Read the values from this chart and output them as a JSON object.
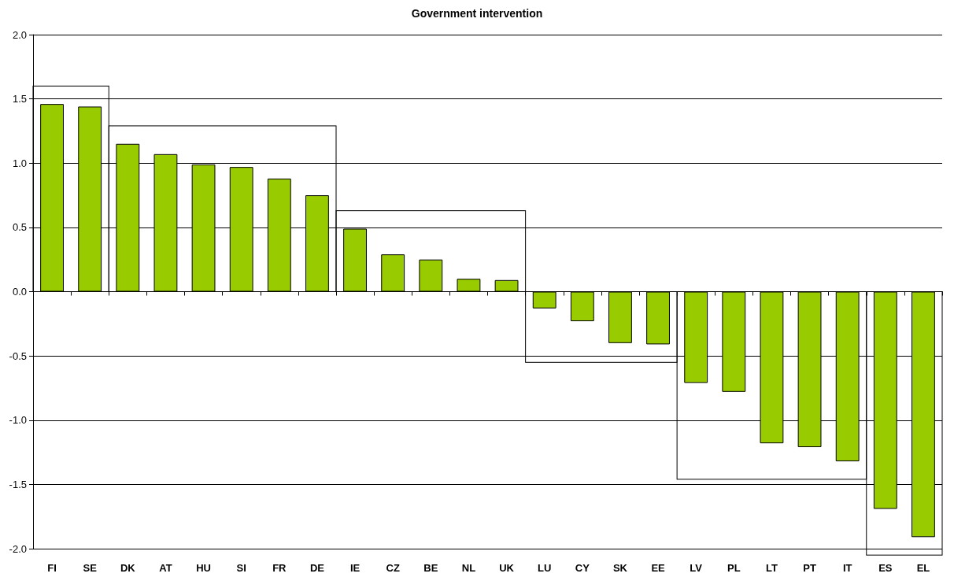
{
  "chart_data": {
    "type": "bar",
    "title": "Government intervention",
    "categories": [
      "FI",
      "SE",
      "DK",
      "AT",
      "HU",
      "SI",
      "FR",
      "DE",
      "IE",
      "CZ",
      "BE",
      "NL",
      "UK",
      "LU",
      "CY",
      "SK",
      "EE",
      "LV",
      "PL",
      "LT",
      "PT",
      "IT",
      "ES",
      "EL"
    ],
    "values": [
      1.46,
      1.44,
      1.15,
      1.07,
      0.99,
      0.97,
      0.88,
      0.75,
      0.49,
      0.29,
      0.25,
      0.1,
      0.09,
      -0.13,
      -0.23,
      -0.4,
      -0.41,
      -0.71,
      -0.78,
      -1.18,
      -1.21,
      -1.32,
      -1.69,
      -1.91
    ],
    "color": "#99cc00",
    "ylim": [
      -2,
      2
    ],
    "yticks": [
      {
        "value": -2,
        "label": "-2.0"
      },
      {
        "value": -1.5,
        "label": "-1.5"
      },
      {
        "value": -1,
        "label": "-1.0"
      },
      {
        "value": -0.5,
        "label": "-0.5"
      },
      {
        "value": 0,
        "label": "0.0"
      },
      {
        "value": 0.5,
        "label": "0.5"
      },
      {
        "value": 1,
        "label": "1.0"
      },
      {
        "value": 1.5,
        "label": "1.5"
      },
      {
        "value": 2,
        "label": "2.0"
      }
    ],
    "grid": "y"
  }
}
